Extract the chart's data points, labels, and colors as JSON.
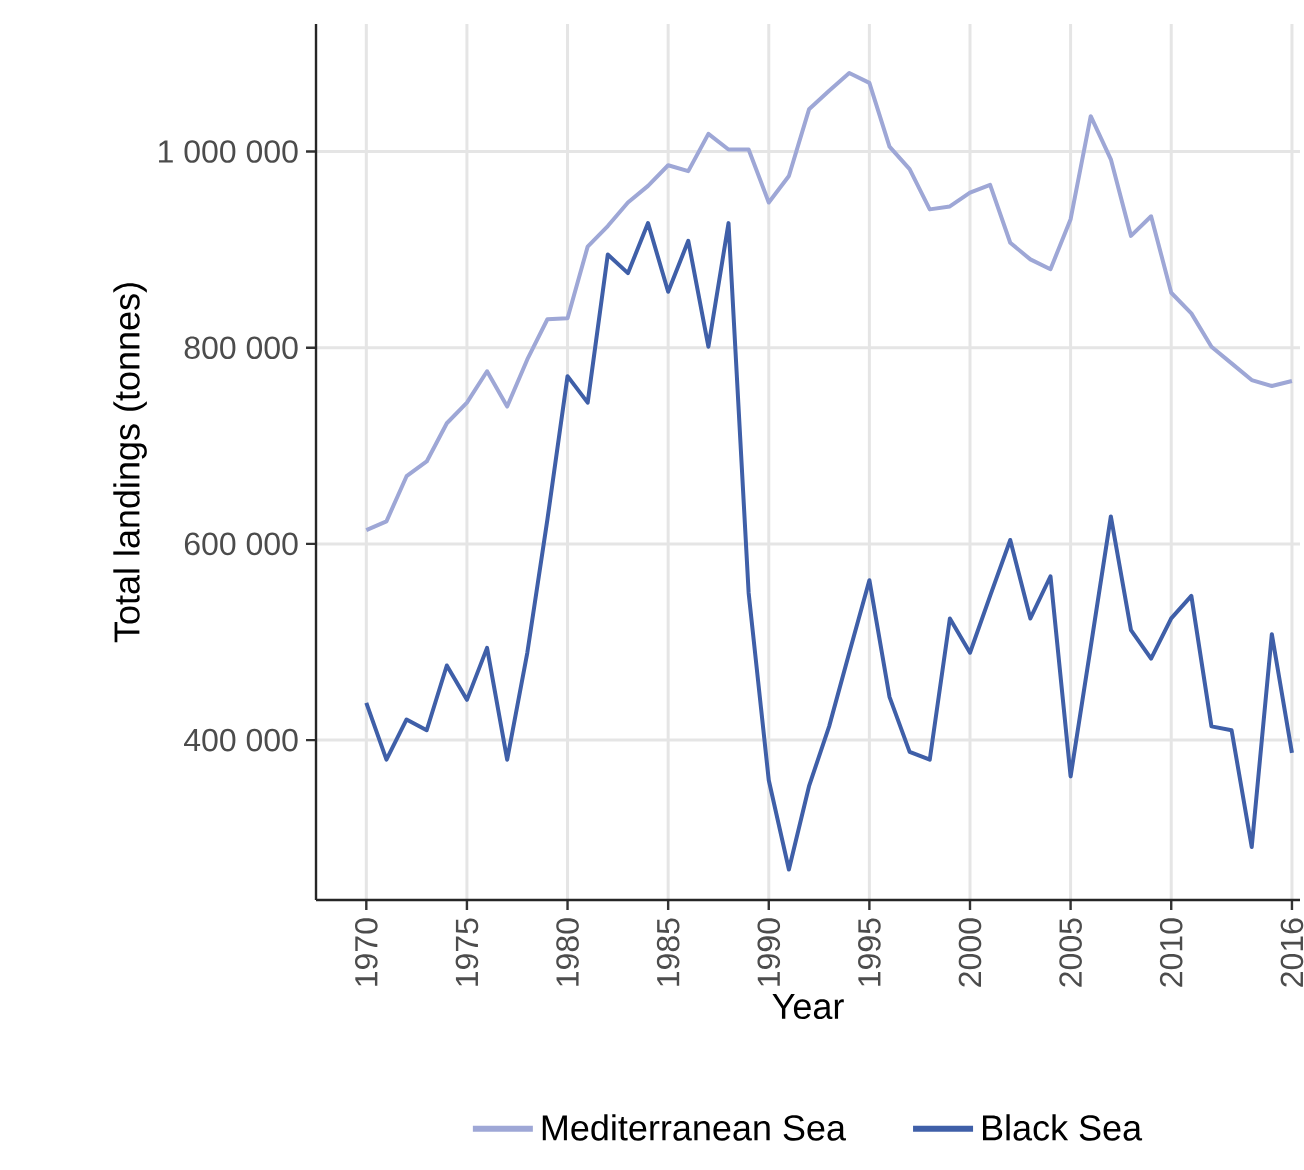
{
  "chart_data": {
    "type": "line",
    "xlabel": "Year",
    "ylabel": "Total landings (tonnes)",
    "x": [
      1970,
      1971,
      1972,
      1973,
      1974,
      1975,
      1976,
      1977,
      1978,
      1979,
      1980,
      1981,
      1982,
      1983,
      1984,
      1985,
      1986,
      1987,
      1988,
      1989,
      1990,
      1991,
      1992,
      1993,
      1994,
      1995,
      1996,
      1997,
      1998,
      1999,
      2000,
      2001,
      2002,
      2003,
      2004,
      2005,
      2006,
      2007,
      2008,
      2009,
      2010,
      2011,
      2012,
      2013,
      2014,
      2015,
      2016
    ],
    "series": [
      {
        "name": "Mediterranean Sea",
        "color": "#9ea7d6",
        "values": [
          614000,
          623000,
          669000,
          684000,
          723000,
          744000,
          776000,
          740000,
          788000,
          829000,
          830000,
          903000,
          924000,
          948000,
          965000,
          986000,
          980000,
          1018000,
          1002000,
          1002000,
          948000,
          975000,
          1043000,
          1062000,
          1080000,
          1070000,
          1005000,
          982000,
          941000,
          944000,
          958000,
          966000,
          907000,
          890000,
          880000,
          931000,
          1036000,
          992000,
          914000,
          934000,
          856000,
          835000,
          801000,
          784000,
          767000,
          761000,
          766000
        ]
      },
      {
        "name": "Black Sea",
        "color": "#3f5fa8",
        "values": [
          438000,
          380000,
          421000,
          410000,
          476000,
          441000,
          494000,
          380000,
          489000,
          625000,
          771000,
          744000,
          895000,
          876000,
          927000,
          857000,
          909000,
          801000,
          927000,
          550000,
          359000,
          268000,
          353000,
          414000,
          489000,
          563000,
          444000,
          388000,
          380000,
          524000,
          489000,
          547000,
          604000,
          524000,
          567000,
          363000,
          495000,
          628000,
          512000,
          483000,
          524000,
          547000,
          414000,
          410000,
          291000,
          508000,
          387000
        ]
      }
    ],
    "xlim": [
      1967.5,
      2016.4
    ],
    "ylim": [
      237000,
      1130000
    ],
    "xticks": [
      1970,
      1975,
      1980,
      1985,
      1990,
      1995,
      2000,
      2005,
      2010,
      2016
    ],
    "yticks": [
      {
        "value": 400000,
        "label": "400 000"
      },
      {
        "value": 600000,
        "label": "600 000"
      },
      {
        "value": 800000,
        "label": "800 000"
      },
      {
        "value": 1000000,
        "label": "1 000 000"
      }
    ],
    "grid": true,
    "legend": "bottom",
    "marker": "none",
    "line_style": "solid"
  }
}
